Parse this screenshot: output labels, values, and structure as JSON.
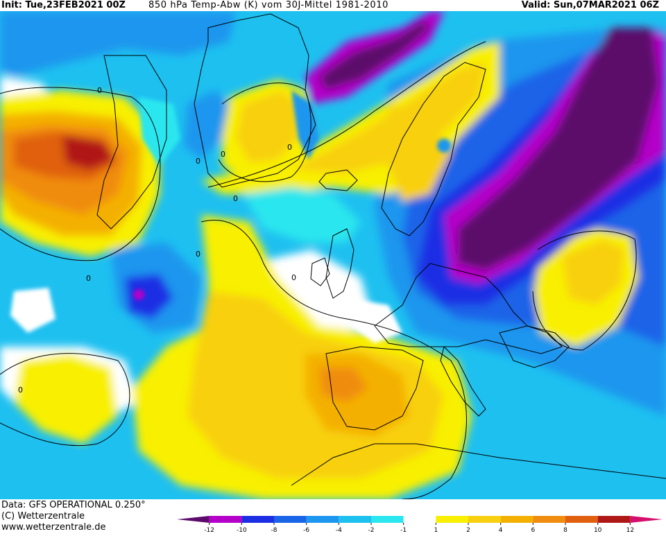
{
  "header": {
    "init": "Init: Tue,23FEB2021 00Z",
    "description": "850 hPa Temp-Abw (K) vom 30J-Mittel 1981-2010",
    "valid": "Valid: Sun,07MAR2021 06Z"
  },
  "footer": {
    "data_source": "Data: GFS OPERATIONAL 0.250°",
    "copyright": "(C) Wetterzentrale",
    "website": "www.wetterzentrale.de"
  },
  "map": {
    "contour_label": "0"
  },
  "legend": {
    "ticks": [
      "-12",
      "-10",
      "-8",
      "-6",
      "-4",
      "-2",
      "-1",
      "1",
      "2",
      "4",
      "6",
      "8",
      "10",
      "12"
    ],
    "colors": [
      "#5c0a6b",
      "#b400c8",
      "#1c2ee4",
      "#1a64e8",
      "#1c96ee",
      "#1ec0f0",
      "#2ae6ee",
      "#ffffff",
      "#f8f000",
      "#f8d010",
      "#f4b000",
      "#f08c10",
      "#e06010",
      "#b01818",
      "#d4106c"
    ]
  }
}
